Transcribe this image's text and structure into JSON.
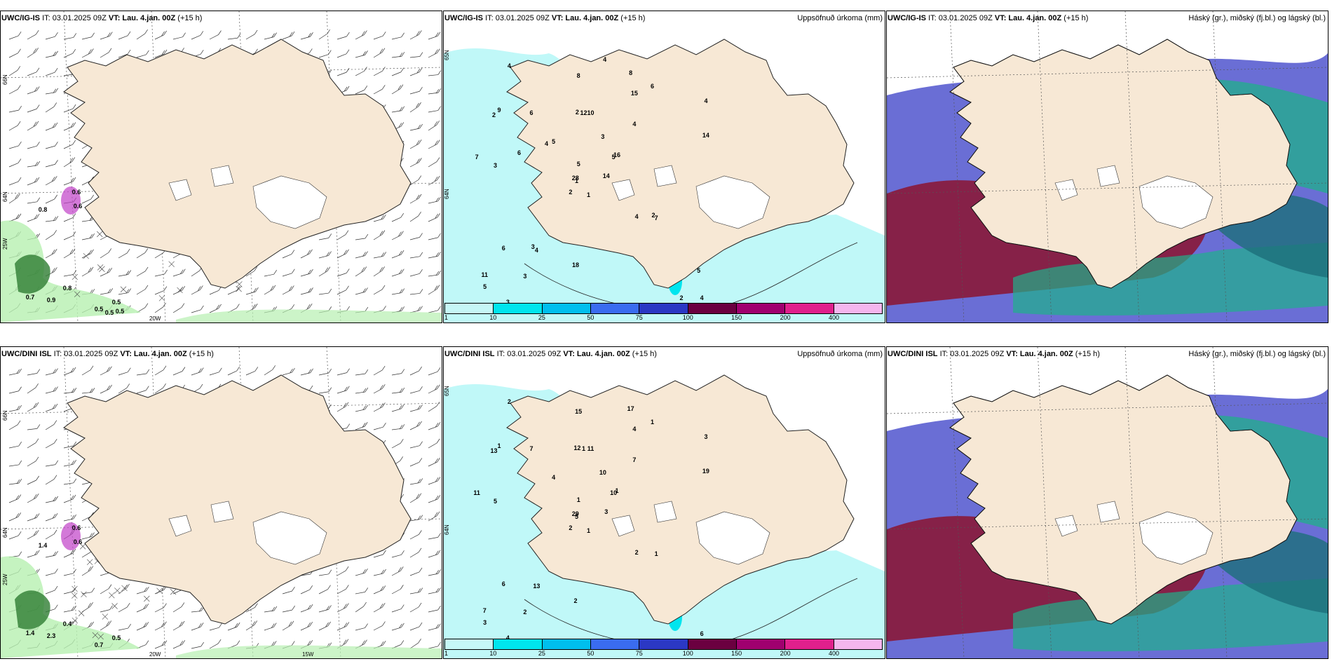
{
  "panels": [
    {
      "id": "top-left",
      "model": "UWC/IG-IS",
      "it_label": "IT: 03.01.2025 09Z",
      "vt_label": "VT: Lau. 4.jan. 00Z",
      "lead": "(+15 h)",
      "right_title": "",
      "type": "wind-precip",
      "lat_labels": [
        "66N",
        "64N"
      ],
      "lon_labels": [
        "25W",
        "20W"
      ],
      "values": [
        "0.6",
        "0.6",
        "0.8",
        "0.7",
        "0.9",
        "0.8",
        "0.5",
        "0.5",
        "0.5",
        "0.5"
      ]
    },
    {
      "id": "top-middle",
      "model": "UWC/IG-IS",
      "it_label": "IT: 03.01.2025 09Z",
      "vt_label": "VT: Lau. 4.jan. 00Z",
      "lead": "(+15 h)",
      "right_title": "Uppsöfnuð úrkoma (mm)",
      "type": "accum-precip",
      "lat_labels": [
        "65N",
        "64N"
      ],
      "values": [
        "1",
        "2",
        "1",
        "11",
        "5",
        "4",
        "8",
        "10",
        "15",
        "14",
        "4",
        "4",
        "3",
        "4",
        "2",
        "4",
        "3",
        "2",
        "3",
        "6",
        "5",
        "5",
        "3",
        "12",
        "16",
        "7",
        "9",
        "8",
        "7",
        "4",
        "14",
        "28",
        "18",
        "5",
        "6",
        "6",
        "3",
        "2",
        "5",
        "2",
        "4",
        "4",
        "6"
      ]
    },
    {
      "id": "top-right",
      "model": "UWC/IG-IS",
      "it_label": "IT: 03.01.2025 09Z",
      "vt_label": "VT: Lau. 4.jan. 00Z",
      "lead": "(+15 h)",
      "right_title": "Háský (gr.), miðský (fj.bl.) og lágský (bl.)",
      "type": "clouds"
    },
    {
      "id": "bottom-left",
      "model": "UWC/DINI ISL",
      "it_label": "IT: 03.01.2025 09Z",
      "vt_label": "VT: Lau. 4.jan. 00Z",
      "lead": "(+15 h)",
      "right_title": "",
      "type": "wind-precip",
      "lat_labels": [
        "66N",
        "64N"
      ],
      "lon_labels": [
        "25W",
        "20W",
        "15W"
      ],
      "values": [
        "0.6",
        "0.6",
        "1.4",
        "1.4",
        "2.3",
        "0.4",
        "0.7",
        "0.5"
      ]
    },
    {
      "id": "bottom-middle",
      "model": "UWC/DINI ISL",
      "it_label": "IT: 03.01.2025 09Z",
      "vt_label": "VT: Lau. 4.jan. 00Z",
      "lead": "(+15 h)",
      "right_title": "Uppsöfnuð úrkoma (mm)",
      "type": "accum-precip",
      "lat_labels": [
        "65N",
        "64N"
      ],
      "values": [
        "1",
        "13",
        "5",
        "7",
        "10",
        "13",
        "17",
        "11",
        "4",
        "3",
        "2",
        "6",
        "5",
        "3",
        "2",
        "7",
        "4",
        "12",
        "10",
        "6",
        "4",
        "3",
        "2",
        "1",
        "1",
        "1",
        "1",
        "15",
        "11",
        "2",
        "19",
        "29",
        "2",
        "1",
        "7",
        "1"
      ]
    },
    {
      "id": "bottom-right",
      "model": "UWC/DINI ISL",
      "it_label": "IT: 03.01.2025 09Z",
      "vt_label": "VT: Lau. 4.jan. 00Z",
      "lead": "(+15 h)",
      "right_title": "Háský (gr.), miðský (fj.bl.) og lágský (bl.)",
      "type": "clouds"
    }
  ],
  "colorbar": {
    "ticks": [
      "1",
      "10",
      "25",
      "50",
      "75",
      "100",
      "150",
      "200",
      "400"
    ],
    "colors": [
      "#c6f7f7",
      "#00e5ee",
      "#00bfee",
      "#3a6cf0",
      "#2b38c4",
      "#6b0040",
      "#a0006f",
      "#e0208c",
      "#f5b6ee"
    ]
  },
  "colors": {
    "land": "#f7e8d5",
    "precip_light": "#c0f8f8",
    "wind_precip_green": "#b6f0b0",
    "wind_precip_purple": "#c040c8",
    "cloud_blue": "#5a5ed0",
    "cloud_red": "#8a1838",
    "cloud_green": "#20b08a"
  }
}
